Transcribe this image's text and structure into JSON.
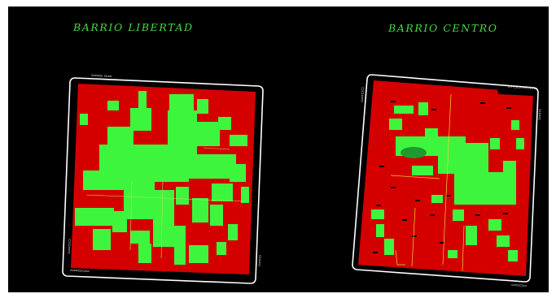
{
  "titles": {
    "left": "BARRIO LIBERTAD",
    "right": "BARRIO CENTRO"
  },
  "colors": {
    "background": "#000000",
    "block": "#d40000",
    "green_area": "#3ef53e",
    "dark_green_area": "#1f9a2e",
    "street_line": "#ffffff",
    "title": "#43d943"
  }
}
